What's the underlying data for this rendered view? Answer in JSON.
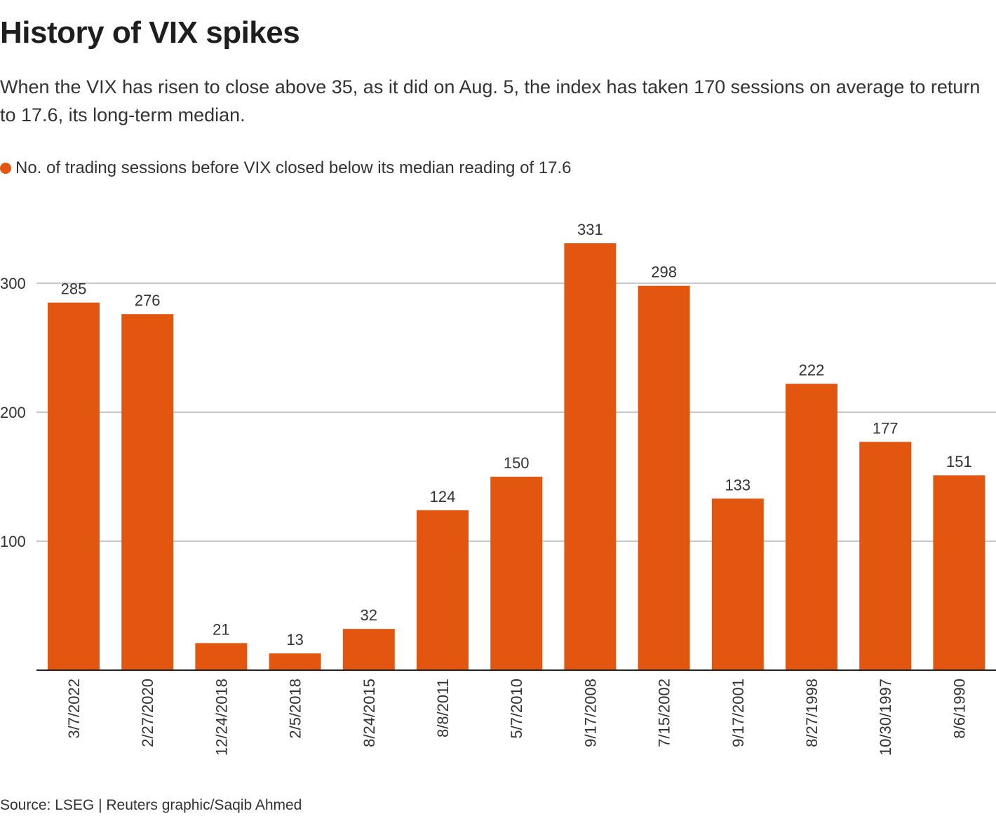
{
  "header": {
    "title": "History of VIX spikes",
    "subtitle": "When the VIX has risen to close above 35, as it did on Aug. 5, the index has taken 170 sessions on average to return to 17.6, its long-term median."
  },
  "legend": {
    "label": "No. of trading sessions before VIX closed below its median reading of 17.6",
    "color": "#e35610"
  },
  "footer": {
    "source": "Source: LSEG | Reuters graphic/Saqib Ahmed"
  },
  "chart_data": {
    "type": "bar",
    "title": "History of VIX spikes",
    "xlabel": "",
    "ylabel": "",
    "categories": [
      "3/7/2022",
      "2/27/2020",
      "12/24/2018",
      "2/5/2018",
      "8/24/2015",
      "8/8/2011",
      "5/7/2010",
      "9/17/2008",
      "7/15/2002",
      "9/17/2001",
      "8/27/1998",
      "10/30/1997",
      "8/6/1990"
    ],
    "series": [
      {
        "name": "No. of trading sessions before VIX closed below its median reading of 17.6",
        "values": [
          285,
          276,
          21,
          13,
          32,
          124,
          150,
          331,
          298,
          133,
          222,
          177,
          151
        ],
        "color": "#e35610"
      }
    ],
    "yticks": [
      100,
      200,
      300
    ],
    "ylim": [
      0,
      331
    ],
    "grid": true,
    "legend_position": "top-left",
    "data_labels": true,
    "colors": {
      "bar": "#e35610",
      "grid": "#c8c8c8",
      "axis": "#222222"
    }
  }
}
